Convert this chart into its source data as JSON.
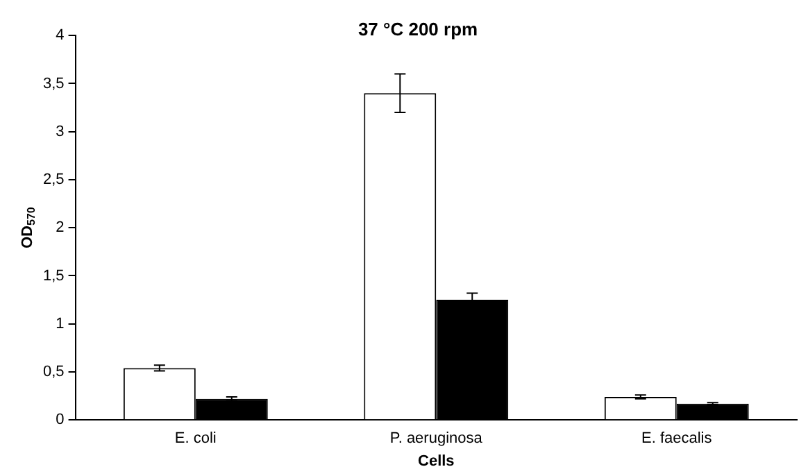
{
  "chart_data": {
    "type": "bar",
    "title": "37 °C 200 rpm",
    "xlabel": "Cells",
    "ylabel": "OD$_{570}$",
    "categories": [
      "E. coli",
      "P. aeruginosa",
      "E. faecalis"
    ],
    "series": [
      {
        "color": "#ffffff",
        "values": [
          0.54,
          3.4,
          0.24
        ],
        "errors": [
          0.03,
          0.2,
          0.02
        ]
      },
      {
        "color": "#000000",
        "values": [
          0.22,
          1.25,
          0.17
        ],
        "errors": [
          0.02,
          0.07,
          0.01
        ]
      }
    ],
    "ylim": [
      0,
      4
    ],
    "yticks": [
      0,
      {
        "value": 0.5,
        "label": "0,5"
      },
      1,
      {
        "value": 1.5,
        "label": "1,5"
      },
      2,
      {
        "value": 2.5,
        "label": "2,5"
      },
      3,
      {
        "value": 3.5,
        "label": "3,5"
      },
      4
    ],
    "grid": false,
    "legend": false
  }
}
